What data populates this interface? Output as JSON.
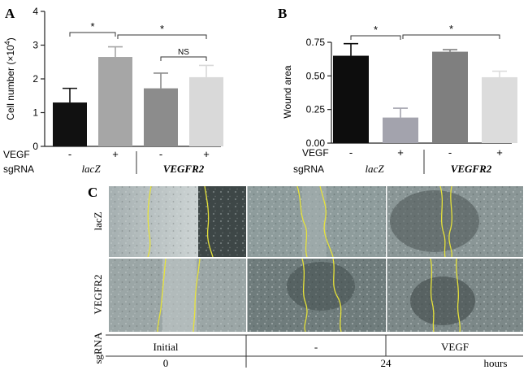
{
  "panels": {
    "a": "A",
    "b": "B",
    "c": "C"
  },
  "chart_data": [
    {
      "panel": "A",
      "type": "bar",
      "categories": [
        "lacZ -",
        "lacZ +",
        "VEGFR2 -",
        "VEGFR2 +"
      ],
      "values": [
        1.3,
        2.65,
        1.72,
        2.05
      ],
      "errors": [
        0.42,
        0.3,
        0.45,
        0.35
      ],
      "colors": [
        "#111111",
        "#a6a6a6",
        "#8c8c8c",
        "#d9d9d9"
      ],
      "ylabel": "Cell number (×10",
      "ylabel_exp": "4",
      "ylabel_close": ")",
      "ylim": [
        0,
        4
      ],
      "yticks": [
        "0",
        "1",
        "2",
        "3",
        "4"
      ],
      "vegf_label": "VEGF",
      "vegf_values": [
        "-",
        "+",
        "-",
        "+"
      ],
      "sgrna_label": "sgRNA",
      "groups": [
        "lacZ",
        "VEGFR2"
      ],
      "significance": [
        {
          "from": 0,
          "to": 1,
          "label": "*"
        },
        {
          "from": 1,
          "to": 3,
          "label": "*"
        },
        {
          "from": 2,
          "to": 3,
          "label": "NS"
        }
      ]
    },
    {
      "panel": "B",
      "type": "bar",
      "categories": [
        "lacZ -",
        "lacZ +",
        "VEGFR2 -",
        "VEGFR2 +"
      ],
      "values": [
        0.65,
        0.19,
        0.68,
        0.49
      ],
      "errors": [
        0.09,
        0.07,
        0.015,
        0.045
      ],
      "colors": [
        "#0d0d0d",
        "#a3a3ad",
        "#7f7f7f",
        "#dcdcdc"
      ],
      "ylabel": "Wound area",
      "ylim": [
        0,
        0.75
      ],
      "yticks": [
        "0.00",
        "0.25",
        "0.50",
        "0.75"
      ],
      "vegf_label": "VEGF",
      "vegf_values": [
        "-",
        "+",
        "-",
        "+"
      ],
      "sgrna_label": "sgRNA",
      "groups": [
        "lacZ",
        "VEGFR2"
      ],
      "significance": [
        {
          "from": 0,
          "to": 1,
          "label": "*"
        },
        {
          "from": 1,
          "to": 3,
          "label": "*"
        }
      ]
    }
  ],
  "micrograph": {
    "row_labels": [
      "lacZ",
      "VEGFR2"
    ],
    "sgrna_label": "sgRNA",
    "conditions": [
      "Initial",
      "-",
      "VEGF"
    ],
    "time_values": [
      "0",
      "24"
    ],
    "time_unit": "hours",
    "wound_line_color": "#e6e23a"
  }
}
